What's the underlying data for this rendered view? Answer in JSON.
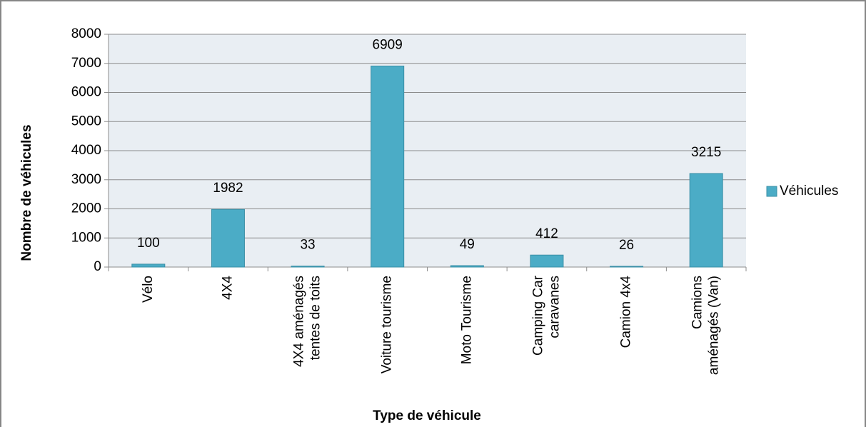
{
  "chart_data": {
    "type": "bar",
    "x_label": "Type de véhicule",
    "y_label": "Nombre de véhicules",
    "categories": [
      "Vélo",
      "4X4",
      "4X4 aménagés\ntentes de toits",
      "Voiture tourisme",
      "Moto Tourisme",
      "Camping Car\ncaravanes",
      "Camion 4x4",
      "Camions\naménagés (Van)"
    ],
    "series": [
      {
        "name": "Véhicules",
        "color": "#4bacc6",
        "values": [
          100,
          1982,
          33,
          6909,
          49,
          412,
          26,
          3215
        ]
      }
    ],
    "ylim": [
      0,
      8000
    ],
    "yticks": [
      0,
      1000,
      2000,
      3000,
      4000,
      5000,
      6000,
      7000,
      8000
    ],
    "grid": true,
    "legend": "right"
  }
}
